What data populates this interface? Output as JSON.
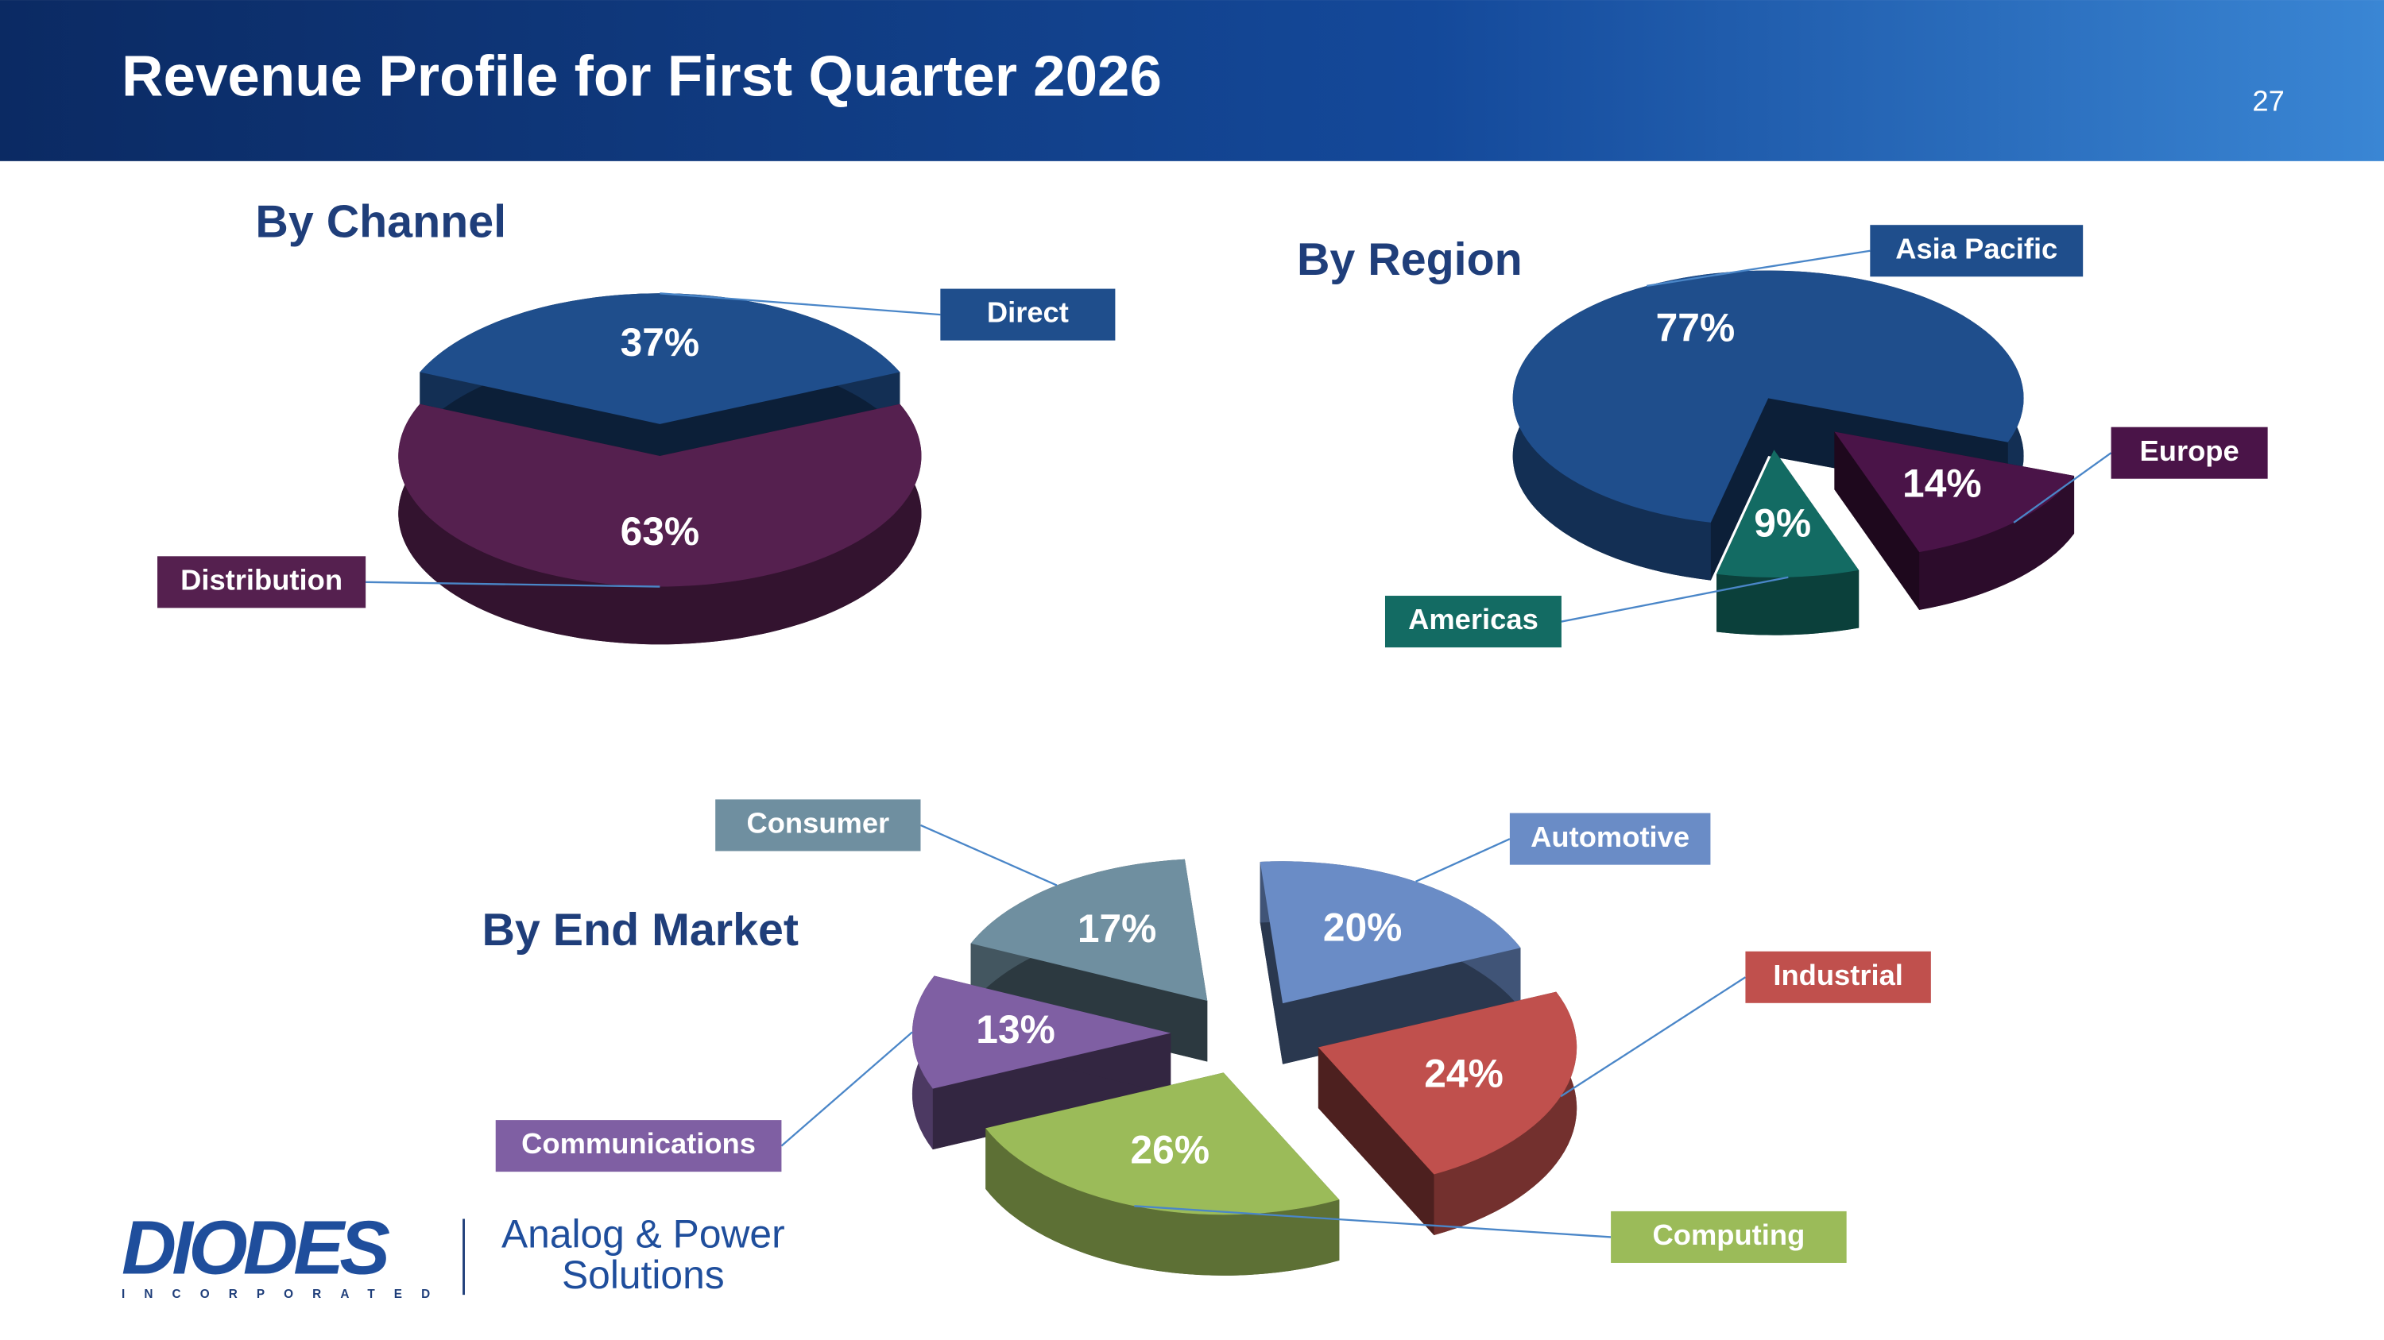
{
  "title": "Revenue Profile for First Quarter 2026",
  "page_number": "27",
  "logo": {
    "name": "DIODES",
    "subname": "INCORPORATED",
    "tagline_1": "Analog & Power",
    "tagline_2": "Solutions"
  },
  "chart_data": [
    {
      "type": "pie",
      "title": "By Channel",
      "categories": [
        "Direct",
        "Distribution"
      ],
      "values": [
        37,
        63
      ],
      "value_labels": [
        "37%",
        "63%"
      ],
      "colors": [
        "#1f4e8c",
        "#55204f"
      ]
    },
    {
      "type": "pie",
      "title": "By Region",
      "categories": [
        "Asia Pacific",
        "Europe",
        "Americas"
      ],
      "values": [
        77,
        14,
        9
      ],
      "value_labels": [
        "77%",
        "14%",
        "9%"
      ],
      "colors": [
        "#1f4e8c",
        "#4a1448",
        "#136b63"
      ]
    },
    {
      "type": "pie",
      "title": "By End Market",
      "categories": [
        "Automotive",
        "Industrial",
        "Computing",
        "Communications",
        "Consumer"
      ],
      "values": [
        20,
        24,
        26,
        13,
        17
      ],
      "value_labels": [
        "20%",
        "24%",
        "26%",
        "13%",
        "17%"
      ],
      "colors": [
        "#6a8cc6",
        "#c0504d",
        "#9bbb59",
        "#7f5fa3",
        "#6f8fa0"
      ]
    }
  ]
}
